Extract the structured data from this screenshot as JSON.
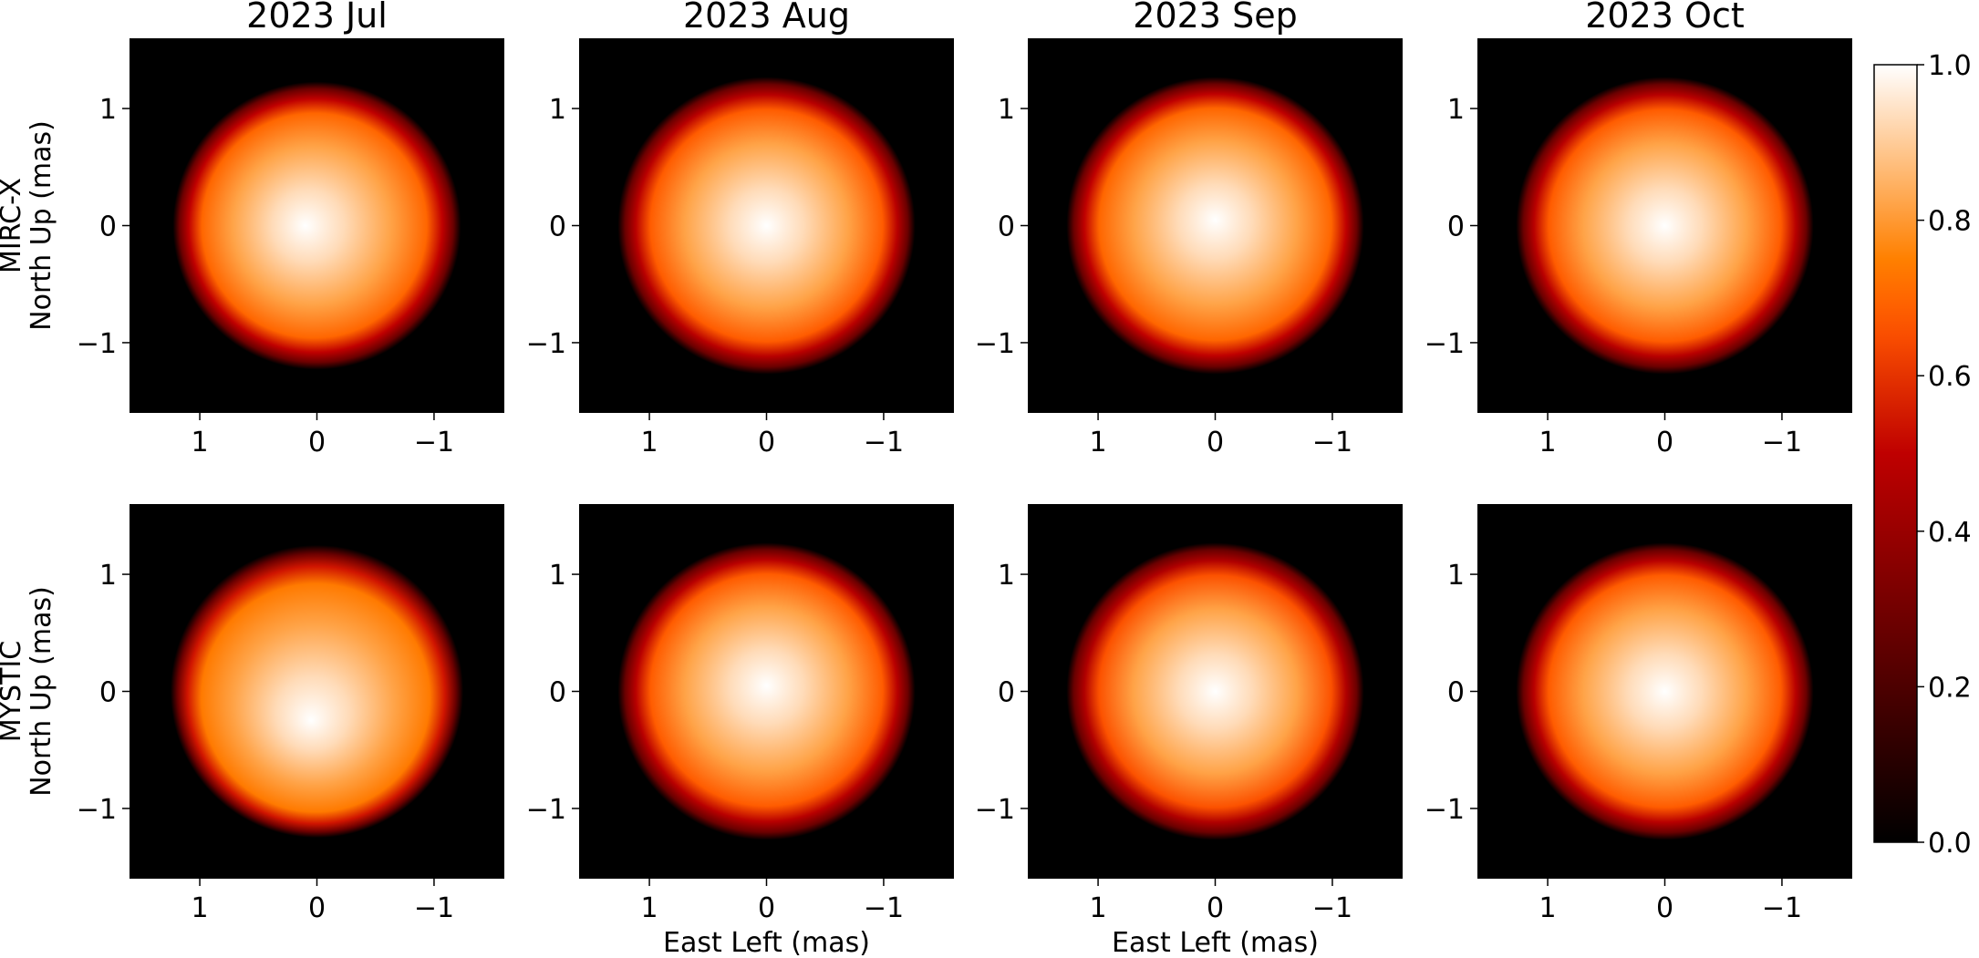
{
  "chart_data": {
    "type": "heatmap",
    "grid_rows": [
      "MIRC-X",
      "MYSTIC"
    ],
    "epochs": [
      "2023 Jul",
      "2023 Aug",
      "2023 Sep",
      "2023 Oct"
    ],
    "row_ylabels": [
      [
        "MIRC-X",
        "North Up (mas)"
      ],
      [
        "MYSTIC",
        "North Up (mas)"
      ]
    ],
    "xlabel": "East Left (mas)",
    "xlabel_panels": [
      "2023 Aug",
      "2023 Sep"
    ],
    "x_ticks": [
      {
        "value": 1,
        "label": "1"
      },
      {
        "value": 0,
        "label": "0"
      },
      {
        "value": -1,
        "label": "−1"
      }
    ],
    "y_ticks": [
      {
        "value": 1,
        "label": "1"
      },
      {
        "value": 0,
        "label": "0"
      },
      {
        "value": -1,
        "label": "−1"
      }
    ],
    "xlim": [
      1.6,
      -1.6
    ],
    "ylim": [
      -1.6,
      1.6
    ],
    "colormap": "gist_heat",
    "colorbar": {
      "range": [
        0.0,
        1.0
      ],
      "ticks": [
        {
          "value": 0.0,
          "label": "0.0"
        },
        {
          "value": 0.2,
          "label": "0.2"
        },
        {
          "value": 0.4,
          "label": "0.4"
        },
        {
          "value": 0.6,
          "label": "0.6"
        },
        {
          "value": 0.8,
          "label": "0.8"
        },
        {
          "value": 1.0,
          "label": "1.0"
        }
      ]
    },
    "panels": [
      {
        "row": "MIRC-X",
        "epoch": "2023 Jul",
        "stellar_radius_mas": 1.23,
        "peak_offset_mas": [
          0.1,
          0.0
        ],
        "peak_intensity": 1.0,
        "limb_intensity": 0.62
      },
      {
        "row": "MIRC-X",
        "epoch": "2023 Aug",
        "stellar_radius_mas": 1.27,
        "peak_offset_mas": [
          0.0,
          0.0
        ],
        "peak_intensity": 1.0,
        "limb_intensity": 0.6
      },
      {
        "row": "MIRC-X",
        "epoch": "2023 Sep",
        "stellar_radius_mas": 1.27,
        "peak_offset_mas": [
          0.0,
          0.05
        ],
        "peak_intensity": 1.0,
        "limb_intensity": 0.62
      },
      {
        "row": "MIRC-X",
        "epoch": "2023 Oct",
        "stellar_radius_mas": 1.27,
        "peak_offset_mas": [
          0.0,
          0.0
        ],
        "peak_intensity": 1.0,
        "limb_intensity": 0.6
      },
      {
        "row": "MYSTIC",
        "epoch": "2023 Jul",
        "stellar_radius_mas": 1.25,
        "peak_offset_mas": [
          0.05,
          -0.25
        ],
        "peak_intensity": 1.0,
        "limb_intensity": 0.66
      },
      {
        "row": "MYSTIC",
        "epoch": "2023 Aug",
        "stellar_radius_mas": 1.27,
        "peak_offset_mas": [
          0.0,
          0.05
        ],
        "peak_intensity": 1.0,
        "limb_intensity": 0.6
      },
      {
        "row": "MYSTIC",
        "epoch": "2023 Sep",
        "stellar_radius_mas": 1.27,
        "peak_offset_mas": [
          0.0,
          0.0
        ],
        "peak_intensity": 1.0,
        "limb_intensity": 0.58
      },
      {
        "row": "MYSTIC",
        "epoch": "2023 Oct",
        "stellar_radius_mas": 1.27,
        "peak_offset_mas": [
          0.0,
          0.0
        ],
        "peak_intensity": 1.0,
        "limb_intensity": 0.6
      }
    ]
  }
}
